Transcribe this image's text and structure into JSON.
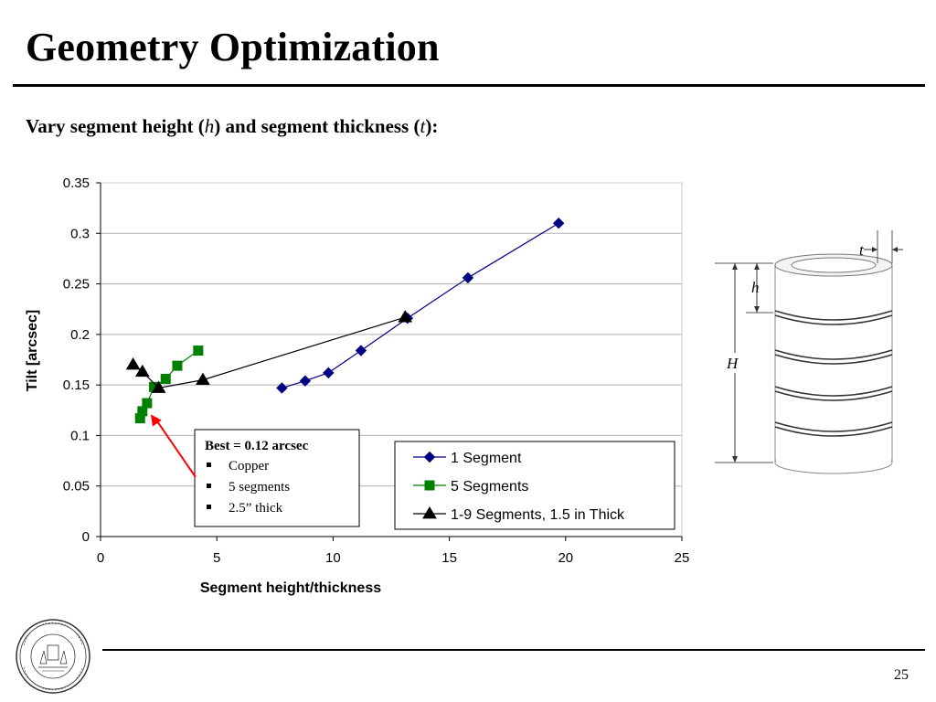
{
  "slide": {
    "title": "Geometry Optimization",
    "subtitle_part1": "Vary segment height (",
    "subtitle_var1": "h",
    "subtitle_part2": ") and segment thickness (",
    "subtitle_var2": "t",
    "subtitle_part3": "):",
    "page_number": "25"
  },
  "chart_data": {
    "type": "line",
    "xlabel": "Segment height/thickness",
    "ylabel": "Tilt [arcsec]",
    "xlim": [
      0,
      25
    ],
    "ylim": [
      0,
      0.35
    ],
    "xticks": [
      0,
      5,
      10,
      15,
      20,
      25
    ],
    "yticks": [
      0,
      0.05,
      0.1,
      0.15,
      0.2,
      0.25,
      0.3,
      0.35
    ],
    "ytick_labels": [
      "0",
      "0.05",
      "0.1",
      "0.15",
      "0.2",
      "0.25",
      "0.3",
      "0.35"
    ],
    "grid": "horizontal",
    "legend_position": "bottom-right inside",
    "series": [
      {
        "name": "1 Segment",
        "marker": "diamond",
        "color": "#000080",
        "x": [
          7.8,
          8.8,
          9.8,
          11.2,
          13.2,
          15.8,
          19.7
        ],
        "y": [
          0.147,
          0.154,
          0.162,
          0.184,
          0.216,
          0.256,
          0.31
        ]
      },
      {
        "name": "5 Segments",
        "marker": "square",
        "color": "#008000",
        "x": [
          1.7,
          1.8,
          2.0,
          2.3,
          2.8,
          3.3,
          4.2
        ],
        "y": [
          0.117,
          0.124,
          0.132,
          0.148,
          0.156,
          0.169,
          0.184
        ]
      },
      {
        "name": "1-9 Segments, 1.5 in Thick",
        "marker": "triangle",
        "color": "#000000",
        "x": [
          1.4,
          1.8,
          2.5,
          4.4,
          13.1
        ],
        "y": [
          0.17,
          0.163,
          0.147,
          0.155,
          0.217
        ]
      }
    ],
    "annotation": {
      "title": "Best = 0.12 arcsec",
      "bullets": [
        "Copper",
        "5 segments",
        "2.5” thick"
      ],
      "arrow_to": {
        "x": 2.0,
        "y": 0.12
      },
      "arrow_color": "#ff0000"
    }
  },
  "diagram": {
    "label_t": "t",
    "label_h": "h",
    "label_H": "H"
  },
  "colors": {
    "series1": "#000080",
    "series2": "#008000",
    "series3": "#000000",
    "arrow": "#ff0000"
  }
}
